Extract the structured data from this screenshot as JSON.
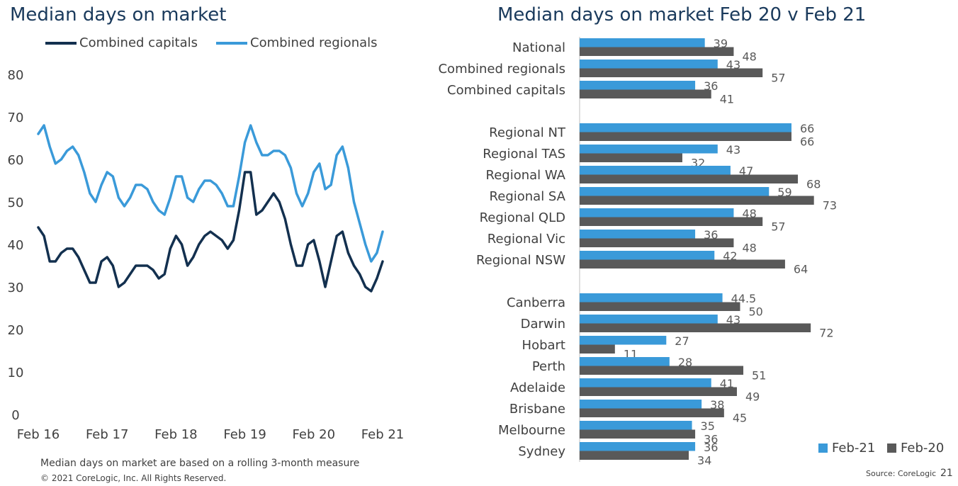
{
  "left_title": "Median days on market",
  "right_title": "Median days on market Feb 20 v Feb 21",
  "colors": {
    "capitals": "#13304f",
    "regionals": "#3a9ad9",
    "feb21": "#3a9ad9",
    "feb20": "#595959"
  },
  "chart_data": [
    {
      "type": "line",
      "title": "Median days on market",
      "yticks": [
        0,
        10,
        20,
        30,
        40,
        50,
        60,
        70,
        80
      ],
      "ylim": [
        0,
        80
      ],
      "xtick_labels": [
        "Feb 16",
        "Feb 17",
        "Feb 18",
        "Feb 19",
        "Feb 20",
        "Feb 21"
      ],
      "legend_position": "top",
      "grid": false,
      "series": [
        {
          "name": "Combined capitals",
          "values": [
            44,
            42,
            36,
            36,
            38,
            39,
            39,
            37,
            34,
            31,
            31,
            36,
            37,
            35,
            30,
            31,
            33,
            35,
            35,
            35,
            34,
            32,
            33,
            39,
            42,
            40,
            35,
            37,
            40,
            42,
            43,
            42,
            41,
            39,
            41,
            48,
            57,
            57,
            47,
            48,
            50,
            52,
            50,
            46,
            40,
            35,
            35,
            40,
            41,
            36,
            30,
            36,
            42,
            43,
            38,
            35,
            33,
            30,
            29,
            32,
            36
          ]
        },
        {
          "name": "Combined regionals",
          "values": [
            66,
            68,
            63,
            59,
            60,
            62,
            63,
            61,
            57,
            52,
            50,
            54,
            57,
            56,
            51,
            49,
            51,
            54,
            54,
            53,
            50,
            48,
            47,
            51,
            56,
            56,
            51,
            50,
            53,
            55,
            55,
            54,
            52,
            49,
            49,
            56,
            64,
            68,
            64,
            61,
            61,
            62,
            62,
            61,
            58,
            52,
            49,
            52,
            57,
            59,
            53,
            54,
            61,
            63,
            58,
            50,
            45,
            40,
            36,
            38,
            43
          ]
        }
      ]
    },
    {
      "type": "bar",
      "orientation": "horizontal",
      "title": "Median days on market Feb 20 v Feb 21",
      "legend_position": "bottom-right",
      "series_names": [
        "Feb-21",
        "Feb-20"
      ],
      "groups": [
        {
          "categories": [
            "National",
            "Combined regionals",
            "Combined capitals"
          ],
          "feb21": [
            39,
            43,
            36
          ],
          "feb20": [
            48,
            57,
            41
          ]
        },
        {
          "categories": [
            "Regional NT",
            "Regional TAS",
            "Regional WA",
            "Regional SA",
            "Regional QLD",
            "Regional Vic",
            "Regional NSW"
          ],
          "feb21": [
            66,
            43,
            47,
            59,
            48,
            36,
            42
          ],
          "feb20": [
            66,
            32,
            68,
            73,
            57,
            48,
            64
          ]
        },
        {
          "categories": [
            "Canberra",
            "Darwin",
            "Hobart",
            "Perth",
            "Adelaide",
            "Brisbane",
            "Melbourne",
            "Sydney"
          ],
          "feb21": [
            44.5,
            43,
            27,
            28,
            41,
            38,
            35,
            36
          ],
          "feb20": [
            50,
            72,
            11,
            51,
            49,
            45,
            36,
            34
          ]
        }
      ]
    }
  ],
  "footer": {
    "note": "Median days on market are based on a rolling 3-month measure",
    "copyright": "© 2021 CoreLogic,  Inc. All Rights Reserved.",
    "source": "Source: CoreLogic",
    "page_number": "21"
  }
}
